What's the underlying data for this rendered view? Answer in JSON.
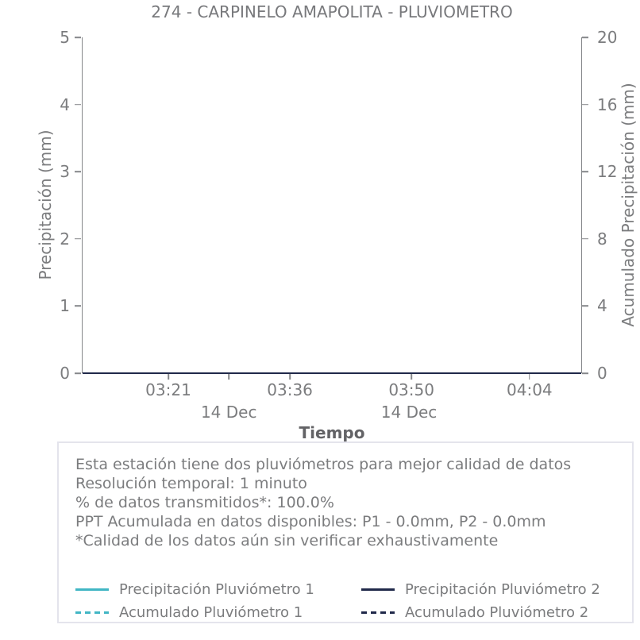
{
  "title": "274 - CARPINELO AMAPOLITA - PLUVIOMETRO",
  "colors": {
    "pluviometro_1": "#41b6c4",
    "pluviometro_2": "#20294a",
    "axis": "#85878a",
    "text": "#7b7c7e",
    "box_border": "#e4e4ec"
  },
  "chart_data": {
    "type": "line",
    "title": "274 - CARPINELO AMAPOLITA - PLUVIOMETRO",
    "xlabel": "Tiempo",
    "grid": false,
    "legend_position": "bottom",
    "x_axis": {
      "ticks": [
        {
          "label": "03:21",
          "pos_pct": 17.3
        },
        {
          "label": "",
          "pos_pct": 29.4
        },
        {
          "label": "03:36",
          "pos_pct": 41.6
        },
        {
          "label": "03:50",
          "pos_pct": 65.9
        },
        {
          "label": "04:04",
          "pos_pct": 89.5
        }
      ],
      "date_labels": [
        {
          "label": "14 Dec",
          "pos_pct": 29.4
        },
        {
          "label": "14 Dec",
          "pos_pct": 65.4
        }
      ]
    },
    "y_axis_left": {
      "label": "Precipitación (mm)",
      "range": [
        0,
        5
      ],
      "ticks": [
        {
          "value": "5",
          "pos_pct": 0
        },
        {
          "value": "4",
          "pos_pct": 20
        },
        {
          "value": "3",
          "pos_pct": 40
        },
        {
          "value": "2",
          "pos_pct": 60
        },
        {
          "value": "1",
          "pos_pct": 80
        },
        {
          "value": "0",
          "pos_pct": 100
        }
      ]
    },
    "y_axis_right": {
      "label": "Acumulado Precipitación (mm)",
      "range": [
        0,
        20
      ],
      "ticks": [
        {
          "value": "20",
          "pos_pct": 0
        },
        {
          "value": "16",
          "pos_pct": 20
        },
        {
          "value": "12",
          "pos_pct": 40
        },
        {
          "value": "8",
          "pos_pct": 60
        },
        {
          "value": "4",
          "pos_pct": 80
        },
        {
          "value": "0",
          "pos_pct": 100
        }
      ]
    },
    "series": [
      {
        "name": "Precipitación Pluviómetro 1",
        "color": "#41b6c4",
        "line_style": "solid",
        "axis": "left",
        "y_constant": 0.0
      },
      {
        "name": "Acumulado Pluviómetro 1",
        "color": "#41b6c4",
        "line_style": "dashed",
        "axis": "right",
        "y_constant": 0.0
      },
      {
        "name": "Precipitación Pluviómetro 2",
        "color": "#20294a",
        "line_style": "solid",
        "axis": "left",
        "y_constant": 0.0
      },
      {
        "name": "Acumulado Pluviómetro 2",
        "color": "#20294a",
        "line_style": "dashed",
        "axis": "right",
        "y_constant": 0.0
      }
    ]
  },
  "info_box": {
    "lines": [
      "Esta estación tiene dos pluviómetros para mejor calidad de datos",
      "Resolución temporal: 1 minuto",
      "% de datos transmitidos*: 100.0%",
      "PPT Acumulada en datos disponibles: P1 - 0.0mm, P2 - 0.0mm",
      "*Calidad de los datos aún sin verificar exhaustivamente"
    ]
  },
  "legend": {
    "entries": [
      {
        "label": "Precipitación Pluviómetro 1",
        "color": "#41b6c4",
        "style": "solid"
      },
      {
        "label": "Precipitación Pluviómetro 2",
        "color": "#20294a",
        "style": "solid"
      },
      {
        "label": "Acumulado Pluviómetro 1",
        "color": "#41b6c4",
        "style": "dashed"
      },
      {
        "label": "Acumulado Pluviómetro 2",
        "color": "#20294a",
        "style": "dashed"
      }
    ]
  }
}
